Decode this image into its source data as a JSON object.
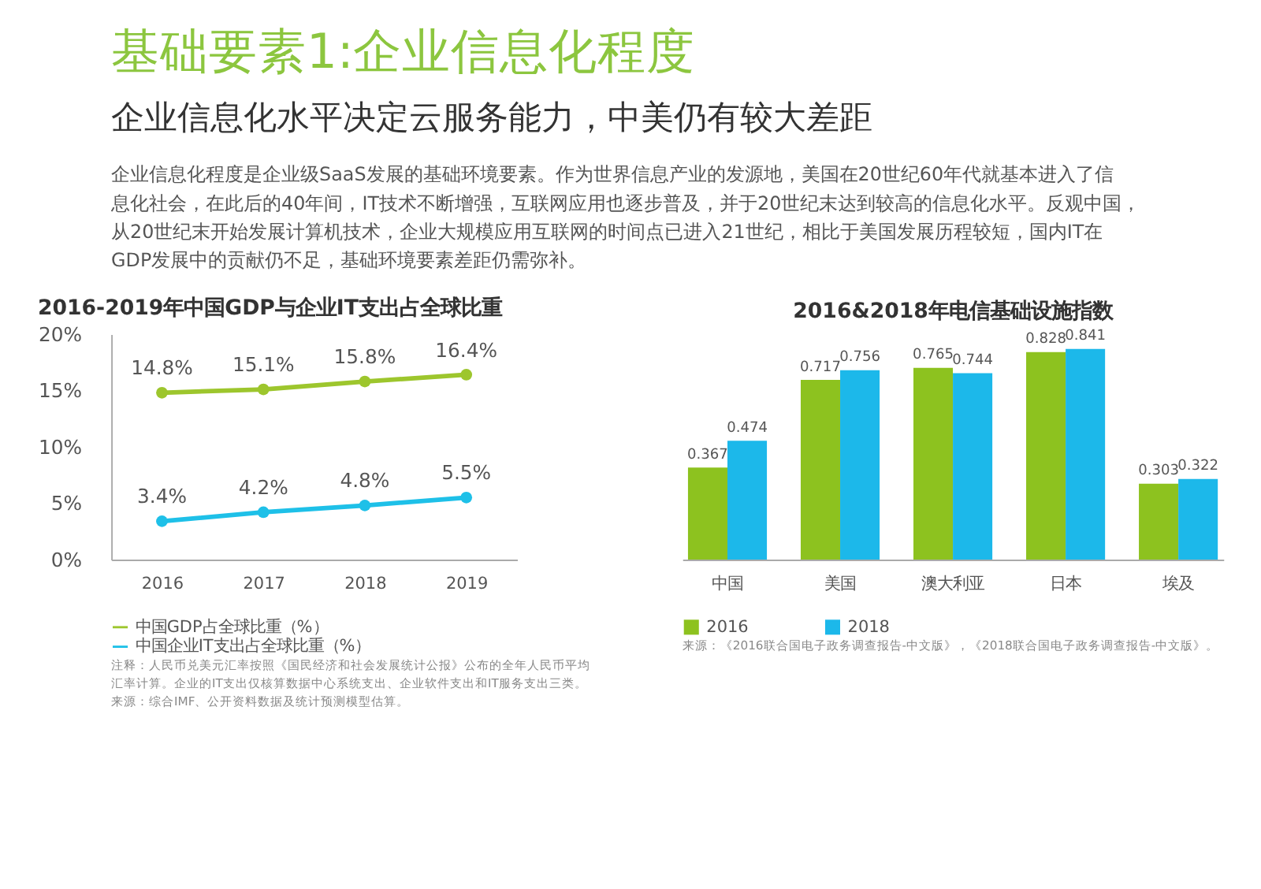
{
  "chart_data": [
    {
      "type": "other",
      "title": "基础要素1:企业信息化程度",
      "subtitle": "企业信息化水平决定云服务能力，中美仍有较大差距",
      "annotations": [
        "企业信息化程度是企业级SaaS发展的基础环境要素。作为世界信息产业的发源地，美国在20世纪60年代就基本进入了信",
        "息化社会，在此后的40年间，IT技术不断增强，互联网应用也逐步普及，并于20世纪末达到较高的信息化水平。反观中国，",
        "从20世纪末开始发展计算机技术，企业大规模应用互联网的时间点已进入21世纪，相比于美国发展历程较短，国内IT在",
        "GDP发展中的贡献仍不足，基础环境要素差距仍需弥补。"
      ]
    },
    {
      "type": "line",
      "title": "2016-2019年中国GDP与企业IT支出占全球比重",
      "categories": [
        "2016",
        "2017",
        "2018",
        "2019"
      ],
      "series": [
        {
          "name": "中国GDP占全球比重（%）",
          "color": "#9dc62d",
          "values": [
            14.8,
            15.1,
            15.8,
            16.4
          ],
          "value_labels": [
            "14.8%",
            "15.1%",
            "15.8%",
            "16.4%"
          ]
        },
        {
          "name": "中国企业IT支出占全球比重（%）",
          "color": "#1ec0e8",
          "values": [
            3.4,
            4.2,
            4.8,
            5.5
          ],
          "value_labels": [
            "3.4%",
            "4.2%",
            "4.8%",
            "5.5%"
          ]
        }
      ],
      "ylim": [
        0,
        20
      ],
      "yticks": [
        {
          "value": 0,
          "label": "0%"
        },
        {
          "value": 5,
          "label": "5%"
        },
        {
          "value": 10,
          "label": "10%"
        },
        {
          "value": 15,
          "label": "15%"
        },
        {
          "value": 20,
          "label": "20%"
        }
      ],
      "marker": "circle",
      "grid": false,
      "legend": "bottom",
      "annotations": [
        "注释：人民币兑美元汇率按照《国民经济和社会发展统计公报》公布的全年人民币平均",
        "汇率计算。企业的IT支出仅核算数据中心系统支出、企业软件支出和IT服务支出三类。",
        "来源：综合IMF、公开资料数据及统计预测模型估算。"
      ]
    },
    {
      "type": "bar",
      "title": "2016&2018年电信基础设施指数",
      "categories": [
        "中国",
        "美国",
        "澳大利亚",
        "日本",
        "埃及"
      ],
      "series": [
        {
          "name": "2016",
          "color": "#8dc21f",
          "values": [
            0.367,
            0.717,
            0.765,
            0.828,
            0.303
          ]
        },
        {
          "name": "2018",
          "color": "#1cb8ea",
          "values": [
            0.474,
            0.756,
            0.744,
            0.841,
            0.322
          ]
        }
      ],
      "data_labels": true,
      "grid": false,
      "legend": "bottom",
      "annotations": [
        "来源：《2016联合国电子政务调查报告-中文版》，《2018联合国电子政务调查报告-中文版》。"
      ]
    }
  ]
}
